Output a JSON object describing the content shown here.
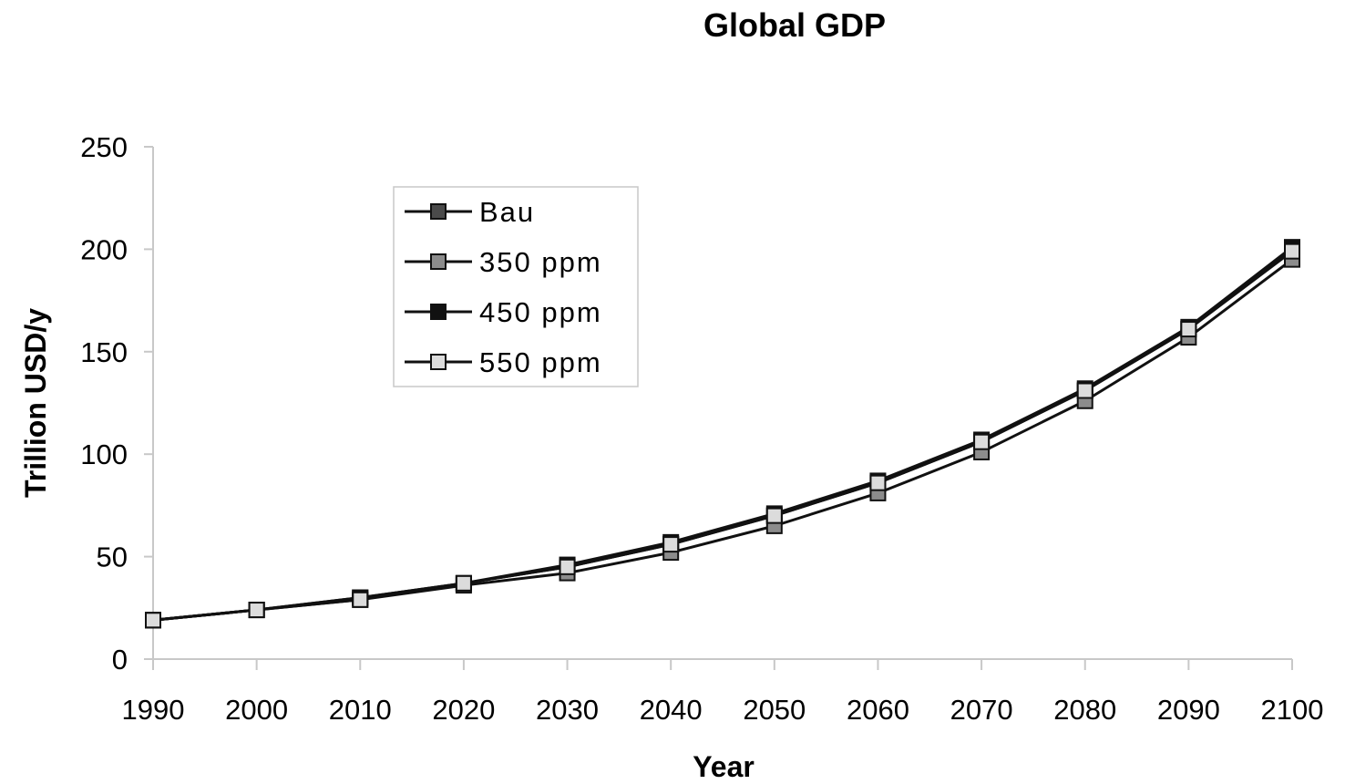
{
  "chart_data": {
    "type": "line",
    "title": "Global GDP",
    "xlabel": "Year",
    "ylabel": "Trillion USD/y",
    "x": [
      1990,
      2000,
      2010,
      2020,
      2030,
      2040,
      2050,
      2060,
      2070,
      2080,
      2090,
      2100
    ],
    "xticks": [
      "1990",
      "2000",
      "2010",
      "2020",
      "2030",
      "2040",
      "2050",
      "2060",
      "2070",
      "2080",
      "2090",
      "2100"
    ],
    "ylim": [
      0,
      250
    ],
    "yticks": [
      "0",
      "50",
      "100",
      "150",
      "200",
      "250"
    ],
    "grid": false,
    "legend_position": "upper-left",
    "series": [
      {
        "name": "Bau",
        "marker_color": "#4a4a4a",
        "values": [
          19,
          24,
          30,
          37,
          45,
          56,
          70,
          86,
          106,
          131,
          161,
          200
        ]
      },
      {
        "name": "350 ppm",
        "marker_color": "#8c8c8c",
        "values": [
          19,
          24,
          29,
          36,
          42,
          52,
          65,
          81,
          101,
          126,
          157,
          195
        ]
      },
      {
        "name": "450 ppm",
        "marker_color": "#111111",
        "values": [
          19,
          24,
          30,
          37,
          46,
          57,
          71,
          87,
          107,
          132,
          162,
          201
        ]
      },
      {
        "name": "550 ppm",
        "marker_color": "#dcdcdc",
        "values": [
          19,
          24,
          29,
          37,
          45,
          56,
          70,
          86,
          106,
          131,
          161,
          199
        ]
      }
    ]
  }
}
